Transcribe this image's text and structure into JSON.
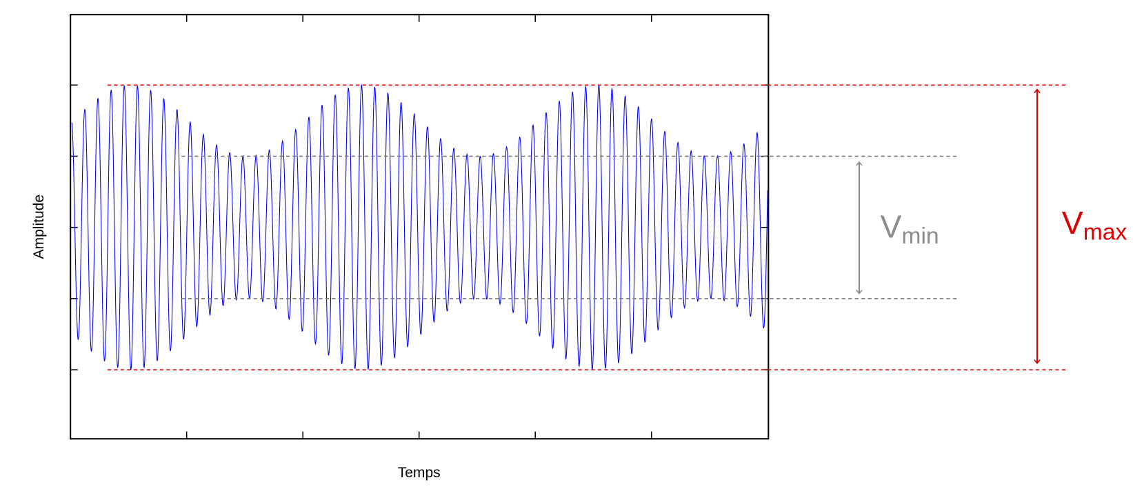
{
  "axes": {
    "x_label": "Temps",
    "y_label": "Amplitude"
  },
  "annotations": {
    "vmin": {
      "symbol": "V",
      "subscript": "min"
    },
    "vmax": {
      "symbol": "V",
      "subscript": "max"
    }
  }
}
